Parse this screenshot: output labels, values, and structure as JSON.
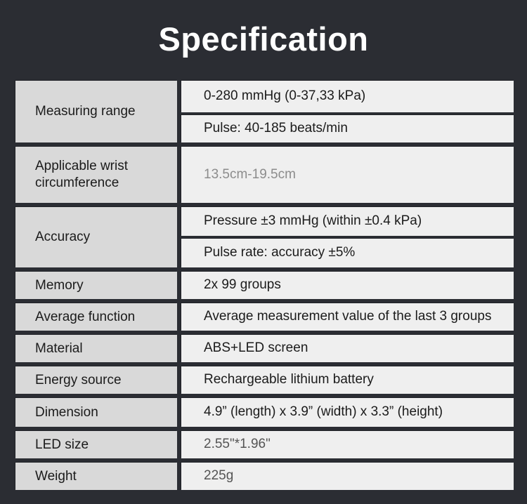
{
  "title": "Specification",
  "colors": {
    "background": "#2b2d33",
    "title_text": "#ffffff",
    "label_cell_bg": "#d9d9d9",
    "value_cell_bg": "#efefef",
    "primary_text": "#1b1b1b",
    "muted_light_text": "#8c8c8c",
    "muted_dark_text": "#545454"
  },
  "table": {
    "rows": [
      {
        "label": "Measuring range",
        "values": [
          "0-280 mmHg (0-37,33 kPa)",
          "Pulse: 40-185 beats/min"
        ]
      },
      {
        "label": "Applicable wrist circumference",
        "values": [
          "13.5cm-19.5cm"
        ]
      },
      {
        "label": "Accuracy",
        "values": [
          "Pressure ±3 mmHg (within ±0.4 kPa)",
          "Pulse rate: accuracy ±5%"
        ]
      },
      {
        "label": "Memory",
        "values": [
          "2x 99 groups"
        ]
      },
      {
        "label": "Average function",
        "values": [
          "Average measurement value of the last 3 groups"
        ]
      },
      {
        "label": "Material",
        "values": [
          "ABS+LED screen"
        ]
      },
      {
        "label": "Energy source",
        "values": [
          "Rechargeable lithium battery"
        ]
      },
      {
        "label": "Dimension",
        "values": [
          "4.9” (length) x 3.9” (width) x 3.3” (height)"
        ]
      },
      {
        "label": "LED size",
        "values": [
          "2.55\"*1.96\""
        ]
      },
      {
        "label": "Weight",
        "values": [
          "225g"
        ]
      }
    ]
  }
}
